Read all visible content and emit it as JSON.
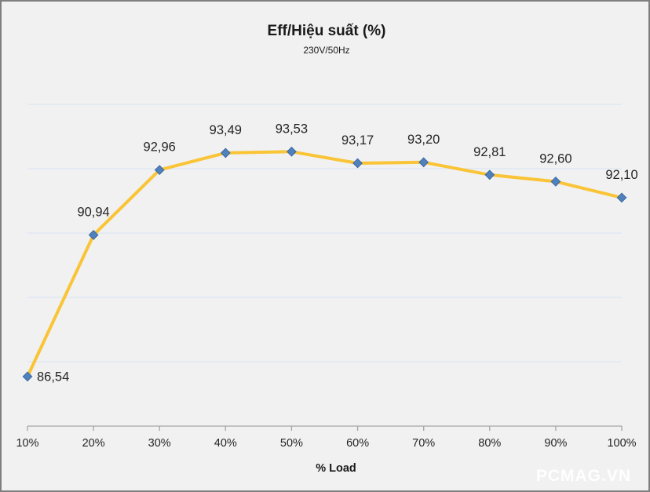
{
  "page": {
    "background": "#F1F1F2",
    "border_color": "#7F7F7F"
  },
  "header": {
    "title": "Eff/Hiệu suất (%)",
    "subtitle": "230V/50Hz"
  },
  "watermark": "PCMAG.VN",
  "chart_data": {
    "type": "line",
    "title": "Eff/Hiệu suất (%)",
    "subtitle": "230V/50Hz",
    "categories": [
      "10%",
      "20%",
      "30%",
      "40%",
      "50%",
      "60%",
      "70%",
      "80%",
      "90%",
      "100%"
    ],
    "values": [
      86.54,
      90.94,
      92.96,
      93.49,
      93.53,
      93.17,
      93.2,
      92.81,
      92.6,
      92.1
    ],
    "point_labels": [
      "86,54",
      "90,94",
      "92,96",
      "93,49",
      "93,53",
      "93,17",
      "93,20",
      "92,81",
      "92,60",
      "92,10"
    ],
    "xlabel": "% Load",
    "ylabel": "",
    "ylim": [
      85,
      96
    ],
    "grid_step": 2,
    "grid": "horizontal-only",
    "y_axis_labels": "hidden",
    "legend": "none",
    "marker_shape": "diamond",
    "colors": {
      "line": "#FAC437",
      "marker": "#4F81BD",
      "marker_edge": "#3E689E",
      "grid": "#DCE6F1",
      "axis": "#A6A6A6",
      "text": "#262626"
    }
  }
}
